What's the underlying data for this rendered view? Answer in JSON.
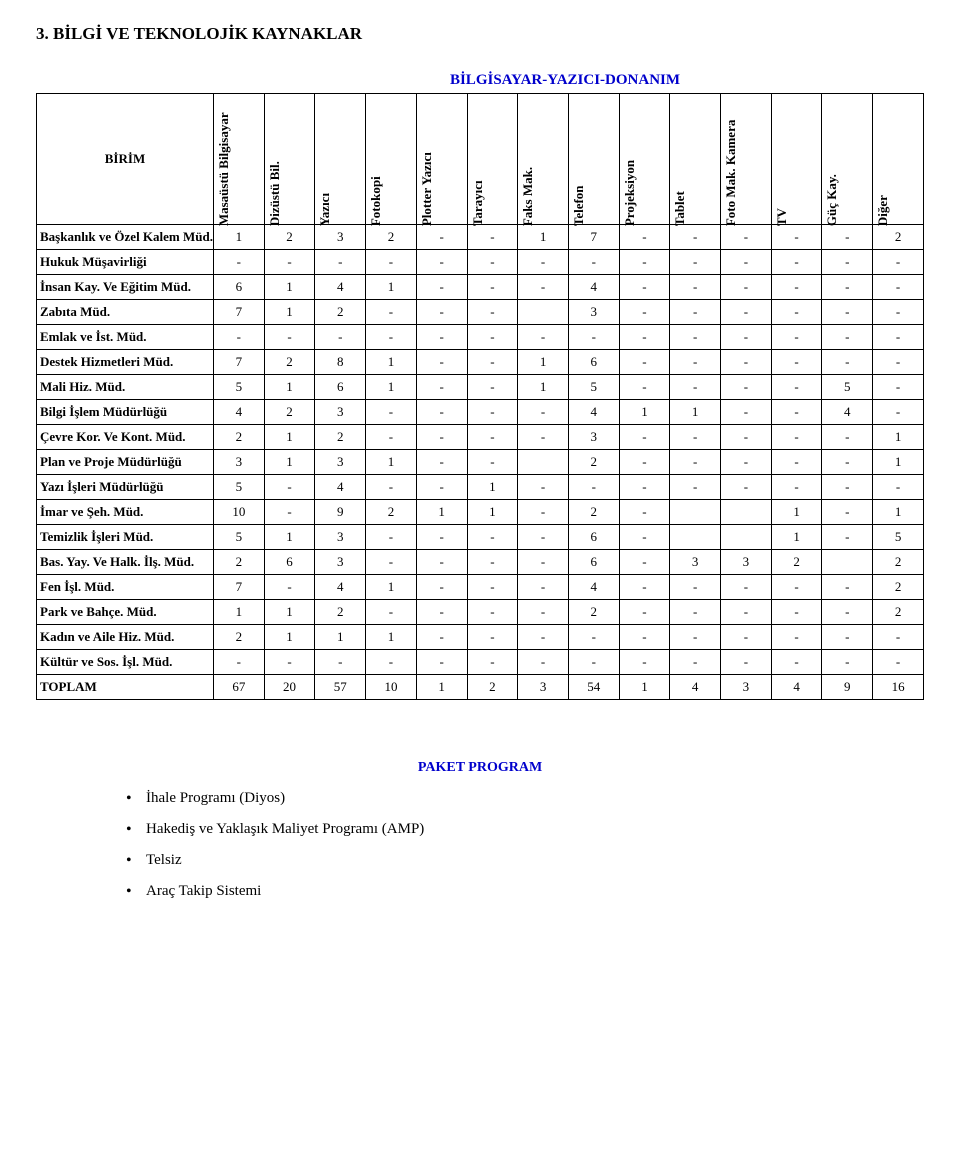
{
  "title": "3.  BİLGİ VE TEKNOLOJİK KAYNAKLAR",
  "table": {
    "super_header": "BİLGİSAYAR-YAZICI-DONANIM",
    "row_header_label": "BİRİM",
    "columns": [
      "Masaüstü Bilgisayar",
      "Dizüstü Bil.",
      "Yazıcı",
      "Fotokopi",
      "Plotter Yazıcı",
      "Tarayıcı",
      "Faks Mak.",
      "Telefon",
      "Projeksiyon",
      "Tablet",
      "Foto Mak. Kamera",
      "TV",
      "Güç Kay.",
      "Diğer"
    ],
    "rows": [
      {
        "label": "Başkanlık ve Özel Kalem Müd.",
        "vals": [
          "1",
          "2",
          "3",
          "2",
          "-",
          "-",
          "1",
          "7",
          "-",
          "-",
          "-",
          "-",
          "-",
          "2"
        ]
      },
      {
        "label": "Hukuk Müşavirliği",
        "vals": [
          "-",
          "-",
          "-",
          "-",
          "-",
          "-",
          "-",
          "-",
          "-",
          "-",
          "-",
          "-",
          "-",
          "-"
        ]
      },
      {
        "label": "İnsan Kay. Ve Eğitim Müd.",
        "vals": [
          "6",
          "1",
          "4",
          "1",
          "-",
          "-",
          "-",
          "4",
          "-",
          "-",
          "-",
          "-",
          "-",
          "-"
        ]
      },
      {
        "label": "Zabıta  Müd.",
        "vals": [
          "7",
          "1",
          "2",
          "-",
          "-",
          "-",
          "",
          "3",
          "-",
          "-",
          "-",
          "-",
          "-",
          "-"
        ]
      },
      {
        "label": "Emlak ve İst. Müd.",
        "vals": [
          "-",
          "-",
          "-",
          "-",
          "-",
          "-",
          "-",
          "-",
          "-",
          "-",
          "-",
          "-",
          "-",
          "-"
        ]
      },
      {
        "label": "Destek Hizmetleri Müd.",
        "vals": [
          "7",
          "2",
          "8",
          "1",
          "-",
          "-",
          "1",
          "6",
          "-",
          "-",
          "-",
          "-",
          "-",
          "-"
        ]
      },
      {
        "label": "Mali Hiz. Müd.",
        "vals": [
          "5",
          "1",
          "6",
          "1",
          "-",
          "-",
          "1",
          "5",
          "-",
          "-",
          "-",
          "-",
          "5",
          "-"
        ]
      },
      {
        "label": "Bilgi İşlem Müdürlüğü",
        "vals": [
          "4",
          "2",
          "3",
          "-",
          "-",
          "-",
          "-",
          "4",
          "1",
          "1",
          "-",
          "-",
          "4",
          "-"
        ]
      },
      {
        "label": "Çevre Kor. Ve Kont. Müd.",
        "vals": [
          "2",
          "1",
          "2",
          "-",
          "-",
          "-",
          "-",
          "3",
          "-",
          "-",
          "-",
          "-",
          "-",
          "1"
        ]
      },
      {
        "label": "Plan ve Proje Müdürlüğü",
        "vals": [
          "3",
          "1",
          "3",
          "1",
          "-",
          "-",
          "",
          "2",
          "-",
          "-",
          "-",
          "-",
          "-",
          "1"
        ]
      },
      {
        "label": "Yazı İşleri Müdürlüğü",
        "vals": [
          "5",
          "-",
          "4",
          "-",
          "-",
          "1",
          "-",
          "-",
          "-",
          "-",
          "-",
          "-",
          "-",
          "-"
        ]
      },
      {
        "label": "İmar ve Şeh. Müd.",
        "vals": [
          "10",
          "-",
          "9",
          "2",
          "1",
          "1",
          "-",
          "2",
          "-",
          "",
          "",
          "1",
          "-",
          "1"
        ]
      },
      {
        "label": "Temizlik İşleri Müd.",
        "vals": [
          "5",
          "1",
          "3",
          "-",
          "-",
          "-",
          "-",
          "6",
          "-",
          "",
          "",
          "1",
          "-",
          "5"
        ]
      },
      {
        "label": "Bas. Yay. Ve Halk. İlş. Müd.",
        "vals": [
          "2",
          "6",
          "3",
          "-",
          "-",
          "-",
          "-",
          "6",
          "-",
          "3",
          "3",
          "2",
          "",
          "2"
        ]
      },
      {
        "label": "Fen İşl. Müd.",
        "vals": [
          "7",
          "-",
          "4",
          "1",
          "-",
          "-",
          "-",
          "4",
          "-",
          "-",
          "-",
          "-",
          "-",
          "2"
        ]
      },
      {
        "label": "Park ve Bahçe. Müd.",
        "vals": [
          "1",
          "1",
          "2",
          "-",
          "-",
          "-",
          "-",
          "2",
          "-",
          "-",
          "-",
          "-",
          "-",
          "2"
        ]
      },
      {
        "label": "Kadın ve Aile Hiz. Müd.",
        "vals": [
          "2",
          "1",
          "1",
          "1",
          "-",
          "-",
          "-",
          "-",
          "-",
          "-",
          "-",
          "-",
          "-",
          "-"
        ]
      },
      {
        "label": "Kültür ve Sos. İşl. Müd.",
        "vals": [
          "-",
          "-",
          "-",
          "-",
          "-",
          "-",
          "-",
          "-",
          "-",
          "-",
          "-",
          "-",
          "-",
          "-"
        ]
      },
      {
        "label": "TOPLAM",
        "vals": [
          "67",
          "20",
          "57",
          "10",
          "1",
          "2",
          "3",
          "54",
          "1",
          "4",
          "3",
          "4",
          "9",
          "16"
        ]
      }
    ]
  },
  "programs": {
    "title": "PAKET PROGRAM",
    "items": [
      "İhale Programı (Diyos)",
      "Hakediş ve Yaklaşık Maliyet Programı (AMP)",
      "Telsiz",
      "Araç Takip Sistemi"
    ]
  }
}
